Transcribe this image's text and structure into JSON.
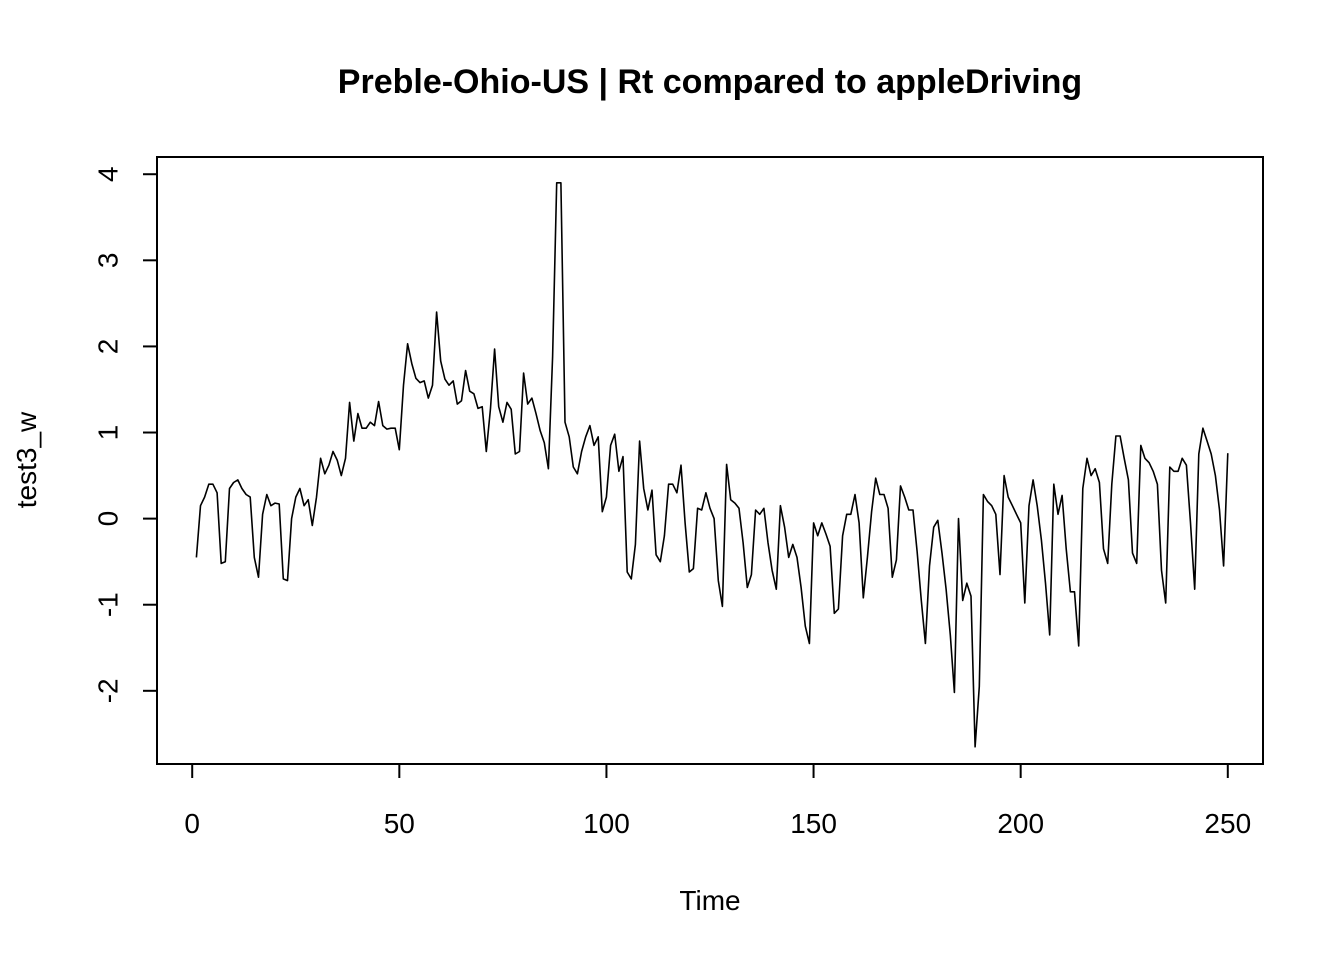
{
  "chart_data": {
    "type": "line",
    "title": "Preble-Ohio-US | Rt compared to appleDriving",
    "xlabel": "Time",
    "ylabel": "test3_w",
    "xlim": [
      -8.5,
      258.5
    ],
    "ylim": [
      -2.85,
      4.2
    ],
    "x_ticks": [
      0,
      50,
      100,
      150,
      200,
      250
    ],
    "x_tick_labels": [
      "0",
      "50",
      "100",
      "150",
      "200",
      "250"
    ],
    "y_ticks": [
      -2,
      -1,
      0,
      1,
      2,
      3,
      4
    ],
    "y_tick_labels": [
      "-2",
      "-1",
      "0",
      "1",
      "2",
      "3",
      "4"
    ],
    "grid": false,
    "series": [
      {
        "x_start": 1,
        "values": [
          -0.45,
          0.15,
          0.25,
          0.4,
          0.4,
          0.3,
          -0.52,
          -0.5,
          0.35,
          0.42,
          0.45,
          0.35,
          0.28,
          0.25,
          -0.45,
          -0.68,
          0.05,
          0.28,
          0.15,
          0.18,
          0.17,
          -0.7,
          -0.72,
          0.0,
          0.25,
          0.35,
          0.15,
          0.22,
          -0.08,
          0.25,
          0.7,
          0.52,
          0.62,
          0.78,
          0.68,
          0.5,
          0.7,
          1.35,
          0.9,
          1.22,
          1.05,
          1.05,
          1.12,
          1.08,
          1.36,
          1.08,
          1.04,
          1.05,
          1.05,
          0.8,
          1.55,
          2.03,
          1.8,
          1.63,
          1.58,
          1.6,
          1.4,
          1.55,
          2.4,
          1.83,
          1.62,
          1.55,
          1.6,
          1.33,
          1.37,
          1.72,
          1.48,
          1.45,
          1.28,
          1.3,
          0.78,
          1.28,
          1.97,
          1.3,
          1.12,
          1.35,
          1.27,
          0.75,
          0.78,
          1.69,
          1.33,
          1.4,
          1.22,
          1.02,
          0.88,
          0.58,
          1.88,
          3.9,
          3.9,
          1.12,
          0.95,
          0.6,
          0.52,
          0.78,
          0.95,
          1.08,
          0.85,
          0.95,
          0.08,
          0.25,
          0.85,
          0.98,
          0.55,
          0.72,
          -0.62,
          -0.7,
          -0.3,
          0.9,
          0.35,
          0.1,
          0.33,
          -0.42,
          -0.5,
          -0.2,
          0.4,
          0.4,
          0.3,
          0.62,
          -0.05,
          -0.62,
          -0.58,
          0.12,
          0.1,
          0.3,
          0.12,
          0.0,
          -0.72,
          -1.02,
          0.63,
          0.22,
          0.18,
          0.12,
          -0.28,
          -0.8,
          -0.65,
          0.1,
          0.05,
          0.12,
          -0.28,
          -0.6,
          -0.82,
          0.15,
          -0.1,
          -0.45,
          -0.3,
          -0.45,
          -0.8,
          -1.25,
          -1.45,
          -0.05,
          -0.2,
          -0.05,
          -0.18,
          -0.32,
          -1.1,
          -1.05,
          -0.2,
          0.05,
          0.05,
          0.28,
          -0.05,
          -0.92,
          -0.45,
          0.08,
          0.47,
          0.28,
          0.28,
          0.12,
          -0.68,
          -0.48,
          0.38,
          0.25,
          0.1,
          0.1,
          -0.38,
          -0.95,
          -1.45,
          -0.55,
          -0.1,
          -0.02,
          -0.4,
          -0.82,
          -1.35,
          -2.02,
          0.0,
          -0.95,
          -0.75,
          -0.9,
          -2.65,
          -1.95,
          0.28,
          0.2,
          0.15,
          0.05,
          -0.65,
          0.5,
          0.25,
          0.15,
          0.05,
          -0.05,
          -0.98,
          0.15,
          0.45,
          0.15,
          -0.25,
          -0.75,
          -1.35,
          0.4,
          0.05,
          0.27,
          -0.35,
          -0.85,
          -0.85,
          -1.48,
          0.35,
          0.7,
          0.5,
          0.58,
          0.42,
          -0.35,
          -0.52,
          0.4,
          0.96,
          0.96,
          0.7,
          0.45,
          -0.4,
          -0.52,
          0.85,
          0.7,
          0.65,
          0.55,
          0.4,
          -0.6,
          -0.98,
          0.6,
          0.55,
          0.55,
          0.7,
          0.62,
          -0.05,
          -0.82,
          0.75,
          1.05,
          0.9,
          0.75,
          0.5,
          0.1,
          -0.55,
          0.76
        ]
      }
    ]
  }
}
